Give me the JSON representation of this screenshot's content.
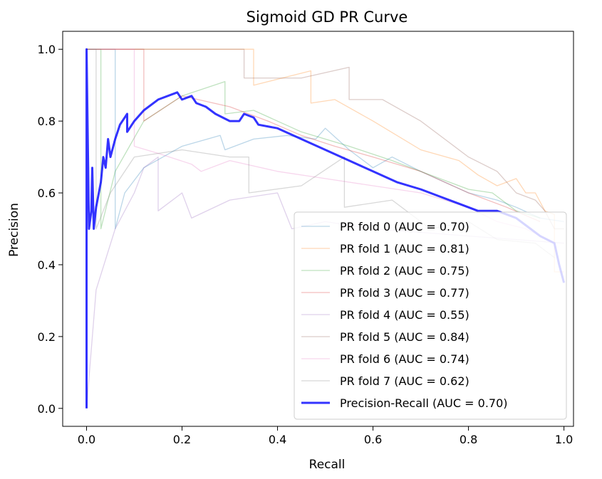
{
  "chart_data": {
    "type": "line",
    "title": "Sigmoid GD PR Curve",
    "xlabel": "Recall",
    "ylabel": "Precision",
    "xlim": [
      -0.05,
      1.02
    ],
    "ylim": [
      -0.05,
      1.05
    ],
    "xticks": [
      0.0,
      0.2,
      0.4,
      0.6,
      0.8,
      1.0
    ],
    "xtick_labels": [
      "0.0",
      "0.2",
      "0.4",
      "0.6",
      "0.8",
      "1.0"
    ],
    "yticks": [
      0.0,
      0.2,
      0.4,
      0.6,
      0.8,
      1.0
    ],
    "ytick_labels": [
      "0.0",
      "0.2",
      "0.4",
      "0.6",
      "0.8",
      "1.0"
    ],
    "grid": false,
    "legend_position": "lower-right",
    "series": [
      {
        "name": "PR fold 0 (AUC = 0.70)",
        "color": "#1f77b4",
        "opacity": 0.3,
        "width": 1.3,
        "points": [
          [
            0.0,
            1.0
          ],
          [
            0.06,
            1.0
          ],
          [
            0.06,
            0.5
          ],
          [
            0.08,
            0.6
          ],
          [
            0.12,
            0.67
          ],
          [
            0.2,
            0.73
          ],
          [
            0.28,
            0.76
          ],
          [
            0.29,
            0.72
          ],
          [
            0.35,
            0.75
          ],
          [
            0.42,
            0.76
          ],
          [
            0.48,
            0.75
          ],
          [
            0.5,
            0.78
          ],
          [
            0.55,
            0.72
          ],
          [
            0.6,
            0.67
          ],
          [
            0.64,
            0.7
          ],
          [
            0.7,
            0.66
          ],
          [
            0.8,
            0.6
          ],
          [
            0.86,
            0.58
          ],
          [
            0.9,
            0.56
          ],
          [
            0.95,
            0.53
          ],
          [
            1.0,
            0.52
          ]
        ]
      },
      {
        "name": "PR fold 1 (AUC = 0.81)",
        "color": "#ff7f0e",
        "opacity": 0.3,
        "width": 1.3,
        "points": [
          [
            0.0,
            1.0
          ],
          [
            0.35,
            1.0
          ],
          [
            0.35,
            0.9
          ],
          [
            0.47,
            0.94
          ],
          [
            0.47,
            0.85
          ],
          [
            0.52,
            0.86
          ],
          [
            0.6,
            0.8
          ],
          [
            0.7,
            0.72
          ],
          [
            0.78,
            0.69
          ],
          [
            0.82,
            0.65
          ],
          [
            0.86,
            0.62
          ],
          [
            0.9,
            0.64
          ],
          [
            0.92,
            0.6
          ],
          [
            0.94,
            0.6
          ],
          [
            0.96,
            0.55
          ],
          [
            0.98,
            0.54
          ],
          [
            0.98,
            0.38
          ],
          [
            1.0,
            0.38
          ]
        ]
      },
      {
        "name": "PR fold 2 (AUC = 0.75)",
        "color": "#2ca02c",
        "opacity": 0.3,
        "width": 1.3,
        "points": [
          [
            0.0,
            1.0
          ],
          [
            0.03,
            1.0
          ],
          [
            0.03,
            0.5
          ],
          [
            0.06,
            0.66
          ],
          [
            0.12,
            0.8
          ],
          [
            0.2,
            0.87
          ],
          [
            0.29,
            0.91
          ],
          [
            0.29,
            0.82
          ],
          [
            0.35,
            0.83
          ],
          [
            0.45,
            0.77
          ],
          [
            0.55,
            0.73
          ],
          [
            0.64,
            0.69
          ],
          [
            0.7,
            0.66
          ],
          [
            0.8,
            0.61
          ],
          [
            0.85,
            0.6
          ],
          [
            0.9,
            0.55
          ],
          [
            0.95,
            0.53
          ]
        ]
      },
      {
        "name": "PR fold 3 (AUC = 0.77)",
        "color": "#d62728",
        "opacity": 0.3,
        "width": 1.3,
        "points": [
          [
            0.0,
            1.0
          ],
          [
            0.12,
            1.0
          ],
          [
            0.12,
            0.8
          ],
          [
            0.2,
            0.87
          ],
          [
            0.3,
            0.84
          ],
          [
            0.38,
            0.8
          ],
          [
            0.45,
            0.76
          ],
          [
            0.52,
            0.73
          ],
          [
            0.6,
            0.7
          ],
          [
            0.7,
            0.66
          ],
          [
            0.8,
            0.6
          ],
          [
            0.88,
            0.56
          ],
          [
            0.95,
            0.52
          ]
        ]
      },
      {
        "name": "PR fold 4 (AUC = 0.55)",
        "color": "#9467bd",
        "opacity": 0.3,
        "width": 1.3,
        "points": [
          [
            0.0,
            0.0
          ],
          [
            0.02,
            0.33
          ],
          [
            0.06,
            0.5
          ],
          [
            0.1,
            0.6
          ],
          [
            0.12,
            0.67
          ],
          [
            0.15,
            0.7
          ],
          [
            0.15,
            0.55
          ],
          [
            0.2,
            0.6
          ],
          [
            0.22,
            0.53
          ],
          [
            0.3,
            0.58
          ],
          [
            0.4,
            0.6
          ],
          [
            0.43,
            0.5
          ],
          [
            0.5,
            0.52
          ],
          [
            0.6,
            0.5
          ],
          [
            0.7,
            0.49
          ],
          [
            0.8,
            0.48
          ],
          [
            0.9,
            0.47
          ],
          [
            1.0,
            0.46
          ]
        ]
      },
      {
        "name": "PR fold 5 (AUC = 0.84)",
        "color": "#8c564b",
        "opacity": 0.3,
        "width": 1.3,
        "points": [
          [
            0.0,
            1.0
          ],
          [
            0.33,
            1.0
          ],
          [
            0.33,
            0.92
          ],
          [
            0.45,
            0.92
          ],
          [
            0.55,
            0.95
          ],
          [
            0.55,
            0.86
          ],
          [
            0.62,
            0.86
          ],
          [
            0.7,
            0.8
          ],
          [
            0.76,
            0.74
          ],
          [
            0.8,
            0.7
          ],
          [
            0.86,
            0.66
          ],
          [
            0.9,
            0.6
          ],
          [
            0.94,
            0.58
          ],
          [
            0.96,
            0.55
          ],
          [
            0.98,
            0.5
          ],
          [
            1.0,
            0.5
          ]
        ]
      },
      {
        "name": "PR fold 6 (AUC = 0.74)",
        "color": "#e377c2",
        "opacity": 0.3,
        "width": 1.3,
        "points": [
          [
            0.0,
            1.0
          ],
          [
            0.1,
            1.0
          ],
          [
            0.1,
            0.73
          ],
          [
            0.15,
            0.71
          ],
          [
            0.22,
            0.68
          ],
          [
            0.24,
            0.66
          ],
          [
            0.3,
            0.69
          ],
          [
            0.4,
            0.66
          ],
          [
            0.5,
            0.64
          ],
          [
            0.6,
            0.62
          ],
          [
            0.7,
            0.6
          ],
          [
            0.8,
            0.56
          ],
          [
            0.86,
            0.52
          ],
          [
            0.92,
            0.5
          ],
          [
            0.98,
            0.46
          ]
        ]
      },
      {
        "name": "PR fold 7 (AUC = 0.62)",
        "color": "#7f7f7f",
        "opacity": 0.3,
        "width": 1.3,
        "points": [
          [
            0.0,
            1.0
          ],
          [
            0.02,
            1.0
          ],
          [
            0.02,
            0.5
          ],
          [
            0.05,
            0.6
          ],
          [
            0.1,
            0.7
          ],
          [
            0.2,
            0.72
          ],
          [
            0.3,
            0.7
          ],
          [
            0.34,
            0.7
          ],
          [
            0.34,
            0.6
          ],
          [
            0.45,
            0.62
          ],
          [
            0.54,
            0.7
          ],
          [
            0.54,
            0.56
          ],
          [
            0.64,
            0.58
          ],
          [
            0.72,
            0.5
          ],
          [
            0.8,
            0.52
          ],
          [
            0.86,
            0.47
          ],
          [
            0.94,
            0.46
          ],
          [
            0.98,
            0.42
          ]
        ]
      },
      {
        "name": "Precision-Recall (AUC = 0.70)",
        "color": "#0000ff",
        "opacity": 0.8,
        "width": 3,
        "points": [
          [
            0.0,
            0.0
          ],
          [
            0.0,
            1.0
          ],
          [
            0.005,
            0.5
          ],
          [
            0.01,
            0.55
          ],
          [
            0.012,
            0.67
          ],
          [
            0.015,
            0.5
          ],
          [
            0.02,
            0.56
          ],
          [
            0.03,
            0.63
          ],
          [
            0.035,
            0.7
          ],
          [
            0.04,
            0.67
          ],
          [
            0.045,
            0.75
          ],
          [
            0.05,
            0.7
          ],
          [
            0.06,
            0.75
          ],
          [
            0.07,
            0.79
          ],
          [
            0.085,
            0.82
          ],
          [
            0.085,
            0.77
          ],
          [
            0.1,
            0.8
          ],
          [
            0.12,
            0.83
          ],
          [
            0.15,
            0.86
          ],
          [
            0.19,
            0.88
          ],
          [
            0.2,
            0.86
          ],
          [
            0.22,
            0.87
          ],
          [
            0.23,
            0.85
          ],
          [
            0.25,
            0.84
          ],
          [
            0.27,
            0.82
          ],
          [
            0.3,
            0.8
          ],
          [
            0.32,
            0.8
          ],
          [
            0.33,
            0.82
          ],
          [
            0.35,
            0.81
          ],
          [
            0.36,
            0.79
          ],
          [
            0.4,
            0.78
          ],
          [
            0.45,
            0.75
          ],
          [
            0.5,
            0.72
          ],
          [
            0.55,
            0.69
          ],
          [
            0.6,
            0.66
          ],
          [
            0.65,
            0.63
          ],
          [
            0.7,
            0.61
          ],
          [
            0.74,
            0.59
          ],
          [
            0.78,
            0.57
          ],
          [
            0.82,
            0.55
          ],
          [
            0.86,
            0.55
          ],
          [
            0.88,
            0.54
          ],
          [
            0.9,
            0.53
          ],
          [
            0.92,
            0.51
          ],
          [
            0.95,
            0.48
          ],
          [
            0.98,
            0.46
          ],
          [
            0.99,
            0.4
          ],
          [
            1.0,
            0.35
          ]
        ]
      }
    ]
  }
}
